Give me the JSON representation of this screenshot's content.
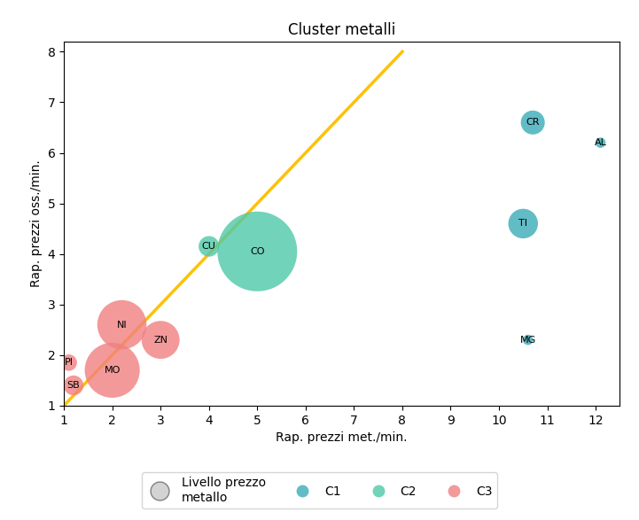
{
  "chart_data": {
    "type": "scatter",
    "title": "Cluster metalli",
    "xlabel": "Rap. prezzi met./min.",
    "ylabel": "Rap. prezzi oss./min.",
    "xlim": [
      1,
      12.5
    ],
    "ylim": [
      1,
      8.2
    ],
    "xticks": [
      1,
      2,
      3,
      4,
      5,
      6,
      7,
      8,
      9,
      10,
      11,
      12
    ],
    "yticks": [
      1,
      2,
      3,
      4,
      5,
      6,
      7,
      8
    ],
    "grid": false,
    "legend": "lower center",
    "size_legend": "Livello prezzo\nmetallo",
    "series": [
      {
        "name": "C1",
        "color": "#3aacb8",
        "labels": [
          "CR",
          "AL",
          "TI",
          "MG"
        ],
        "x": [
          10.7,
          12.1,
          10.5,
          10.6
        ],
        "values": [
          6.6,
          6.2,
          4.6,
          2.3
        ],
        "sizes": [
          380,
          70,
          580,
          70
        ]
      },
      {
        "name": "C2",
        "color": "#4ec9a8",
        "labels": [
          "CO",
          "CU"
        ],
        "x": [
          5.0,
          4.0
        ],
        "values": [
          4.05,
          4.15
        ],
        "sizes": [
          4200,
          280
        ]
      },
      {
        "name": "C3",
        "color": "#f08080",
        "labels": [
          "NI",
          "ZN",
          "MO",
          "PI",
          "SB"
        ],
        "x": [
          2.2,
          3.0,
          2.0,
          1.1,
          1.2
        ],
        "values": [
          2.6,
          2.3,
          1.7,
          1.85,
          1.4
        ],
        "sizes": [
          1600,
          950,
          2000,
          180,
          260
        ]
      },
      {
        "type": "line",
        "color": "#FFC107",
        "x": [
          1,
          8
        ],
        "values": [
          1.0,
          8.0
        ]
      }
    ]
  }
}
